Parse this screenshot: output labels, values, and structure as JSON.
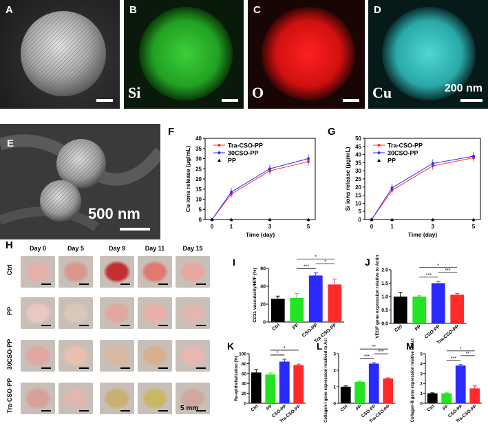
{
  "panels": {
    "A": {
      "label": "A"
    },
    "B": {
      "label": "B",
      "element": "Si"
    },
    "C": {
      "label": "C",
      "element": "O"
    },
    "D": {
      "label": "D",
      "element": "Cu",
      "scale": "200 nm"
    },
    "E": {
      "label": "E",
      "scale": "500 nm"
    },
    "H": {
      "label": "H",
      "scale": "5 mm"
    }
  },
  "wound_grid": {
    "days": [
      "Day 0",
      "Day 5",
      "Day 9",
      "Day 11",
      "Day 15"
    ],
    "groups": [
      "Ctrl",
      "PP",
      "30CSO-PP",
      "Tra-CSO-PP"
    ]
  },
  "colors": {
    "red": "#ff2a2a",
    "blue": "#2a2aff",
    "green": "#22e422",
    "black": "#000000"
  },
  "chart_data": [
    {
      "id": "F",
      "type": "line",
      "label": "F",
      "xlabel": "Time (day)",
      "ylabel": "Cu ions release (μg/mL)",
      "x": [
        0,
        1,
        3,
        5
      ],
      "xticks": [
        "0",
        "1",
        "3",
        "5"
      ],
      "ylim": [
        0,
        40
      ],
      "yticks": [
        "0",
        "5",
        "10",
        "15",
        "20",
        "25",
        "30",
        "35",
        "40"
      ],
      "legend_position": "top-left",
      "series": [
        {
          "name": "Tra-CSO-PP",
          "color": "#ff2a2a",
          "values": [
            0,
            12.5,
            24,
            28.5
          ]
        },
        {
          "name": "30CSO-PP",
          "color": "#2a2aff",
          "values": [
            0,
            13.5,
            25,
            30
          ]
        },
        {
          "name": "PP",
          "color": "#000000",
          "values": [
            0,
            0,
            0,
            0
          ]
        }
      ]
    },
    {
      "id": "G",
      "type": "line",
      "label": "G",
      "xlabel": "Time (day)",
      "ylabel": "Si ions release (μg/mL)",
      "x": [
        0,
        1,
        3,
        5
      ],
      "xticks": [
        "0",
        "1",
        "3",
        "5"
      ],
      "ylim": [
        0,
        50
      ],
      "yticks": [
        "0",
        "5",
        "10",
        "15",
        "20",
        "25",
        "30",
        "35",
        "40",
        "45",
        "50"
      ],
      "legend_position": "top-left",
      "series": [
        {
          "name": "Tra-CSO-PP",
          "color": "#ff2a2a",
          "values": [
            0,
            18,
            33,
            38
          ]
        },
        {
          "name": "30CSO-PP",
          "color": "#2a2aff",
          "values": [
            0,
            19.5,
            34.5,
            39
          ]
        },
        {
          "name": "PP",
          "color": "#000000",
          "values": [
            0,
            0,
            0,
            0
          ]
        }
      ]
    },
    {
      "id": "I",
      "type": "bar",
      "label": "I",
      "ylabel": "CD31 vascularity/HPF (%)",
      "categories": [
        "Ctrl",
        "PP",
        "CSO-PP",
        "Tra-CSO-PP"
      ],
      "values": [
        26,
        27,
        52,
        42
      ],
      "errors": [
        3,
        5,
        3,
        6
      ],
      "ylim": [
        0,
        60
      ],
      "yticks": [
        "0",
        "20",
        "40",
        "60"
      ],
      "colors": [
        "#000000",
        "#22e422",
        "#2a2aff",
        "#ff2a2a"
      ],
      "sig": [
        {
          "from": 1,
          "to": 2,
          "label": "***"
        },
        {
          "from": 2,
          "to": 3,
          "label": "*"
        },
        {
          "from": 1,
          "to": 3,
          "label": "*"
        }
      ]
    },
    {
      "id": "J",
      "type": "bar",
      "label": "J",
      "ylabel": "VEGF gene expression relative to Actin",
      "categories": [
        "Ctrl",
        "PP",
        "CSO-PP",
        "Tra-CSO-PP"
      ],
      "values": [
        1.0,
        1.0,
        1.5,
        1.07
      ],
      "errors": [
        0.15,
        0.03,
        0.07,
        0.05
      ],
      "ylim": [
        0,
        2.0
      ],
      "yticks": [
        "0.0",
        "0.5",
        "1.0",
        "1.5",
        "2.0"
      ],
      "colors": [
        "#000000",
        "#22e422",
        "#2a2aff",
        "#ff2a2a"
      ],
      "sig": [
        {
          "from": 1,
          "to": 2,
          "label": "***"
        },
        {
          "from": 2,
          "to": 3,
          "label": "***"
        },
        {
          "from": 1,
          "to": 3,
          "label": "*"
        }
      ]
    },
    {
      "id": "K",
      "type": "bar",
      "label": "K",
      "ylabel": "Re-epithelialization (%)",
      "categories": [
        "Ctrl",
        "PP",
        "CSO-PP",
        "Tra-CSO-PP"
      ],
      "values": [
        62,
        58,
        84,
        77
      ],
      "errors": [
        6,
        3,
        5,
        2
      ],
      "ylim": [
        0,
        100
      ],
      "yticks": [
        "0",
        "20",
        "40",
        "60",
        "80",
        "100"
      ],
      "colors": [
        "#000000",
        "#22e422",
        "#2a2aff",
        "#ff2a2a"
      ],
      "sig": [
        {
          "from": 1,
          "to": 2,
          "label": "*"
        },
        {
          "from": 1,
          "to": 3,
          "label": "*"
        }
      ]
    },
    {
      "id": "L",
      "type": "bar",
      "label": "L",
      "ylabel": "Collagen-Ⅰ gene expression relalived to Actin",
      "categories": [
        "Ctrl",
        "PP",
        "CSO-PP",
        "Tra-CSO-PP"
      ],
      "values": [
        1.0,
        1.3,
        2.4,
        1.5
      ],
      "errors": [
        0.05,
        0.04,
        0.05,
        0.04
      ],
      "ylim": [
        0,
        3
      ],
      "yticks": [
        "0",
        "1",
        "2",
        "3"
      ],
      "colors": [
        "#000000",
        "#22e422",
        "#2a2aff",
        "#ff2a2a"
      ],
      "sig": [
        {
          "from": 1,
          "to": 2,
          "label": "***"
        },
        {
          "from": 2,
          "to": 3,
          "label": "***"
        },
        {
          "from": 1,
          "to": 3,
          "label": "**"
        }
      ]
    },
    {
      "id": "M",
      "type": "bar",
      "label": "M",
      "ylabel": "Collagen-Ⅲ gene expression relative to Actin",
      "categories": [
        "Ctrl",
        "PP",
        "CSO-PP",
        "Tra-CSO-PP"
      ],
      "values": [
        1.0,
        1.0,
        3.8,
        1.5
      ],
      "errors": [
        0.05,
        0.05,
        0.1,
        0.25
      ],
      "ylim": [
        0,
        5
      ],
      "yticks": [
        "0",
        "1",
        "2",
        "3",
        "4",
        "5"
      ],
      "colors": [
        "#000000",
        "#22e422",
        "#2a2aff",
        "#ff2a2a"
      ],
      "sig": [
        {
          "from": 1,
          "to": 2,
          "label": "***"
        },
        {
          "from": 2,
          "to": 3,
          "label": "**"
        },
        {
          "from": 1,
          "to": 3,
          "label": "*"
        }
      ]
    }
  ]
}
